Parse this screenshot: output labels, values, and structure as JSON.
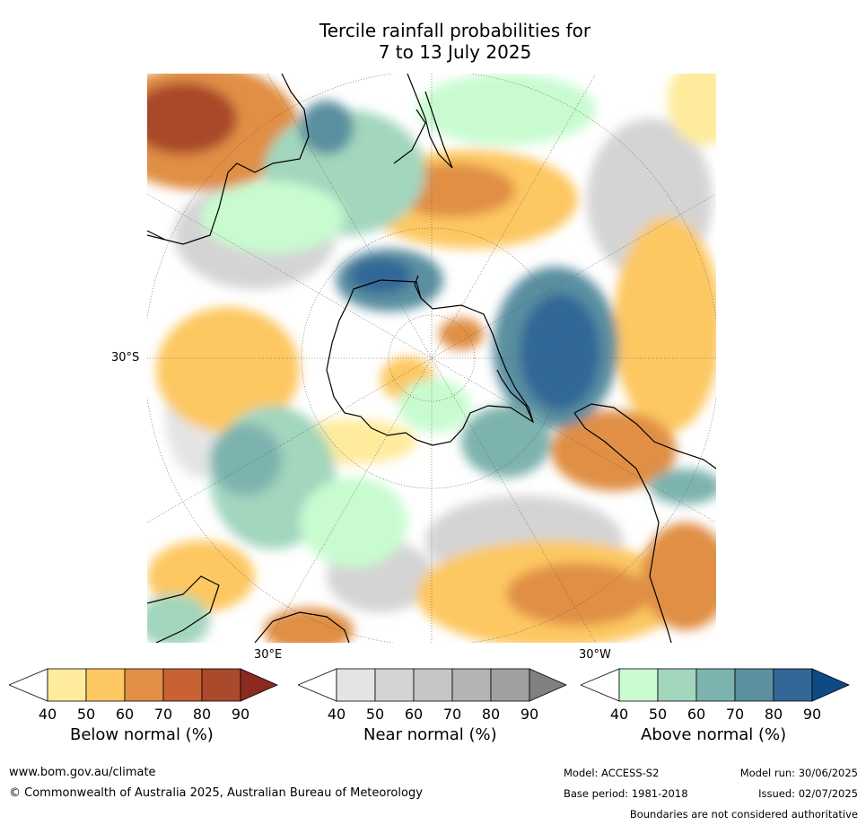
{
  "title_line1": "Tercile rainfall probabilities for",
  "title_line2": "7 to 13 July 2025",
  "map_labels": {
    "lat_label": "30°S",
    "lon_east_label": "30°E",
    "lon_west_label": "30°W"
  },
  "colorbars": [
    {
      "label": "Below normal (%)",
      "ticks": [
        "40",
        "50",
        "60",
        "70",
        "80",
        "90"
      ],
      "colors": [
        "#ffffff",
        "#ffeb9c",
        "#fdc862",
        "#e08f44",
        "#c86232",
        "#a94a2c",
        "#8a2a20"
      ]
    },
    {
      "label": "Near normal (%)",
      "ticks": [
        "40",
        "50",
        "60",
        "70",
        "80",
        "90"
      ],
      "colors": [
        "#ffffff",
        "#e4e4e4",
        "#d4d4d4",
        "#c5c5c5",
        "#b4b4b4",
        "#a0a0a0",
        "#808080"
      ]
    },
    {
      "label": "Above normal (%)",
      "ticks": [
        "40",
        "50",
        "60",
        "70",
        "80",
        "90"
      ],
      "colors": [
        "#ffffff",
        "#c8fcd0",
        "#a2d6bd",
        "#7db3ae",
        "#5a8fa0",
        "#336797",
        "#0e4a85"
      ]
    }
  ],
  "footer": {
    "website": "www.bom.gov.au/climate",
    "copyright": "© Commonwealth of Australia 2025, Australian Bureau of Meteorology",
    "model": "Model: ACCESS-S2",
    "base_period": "Base period: 1981-2018",
    "model_run": "Model run: 30/06/2025",
    "issued": "Issued: 02/07/2025",
    "disclaimer": "Boundaries are not considered authoritative"
  }
}
